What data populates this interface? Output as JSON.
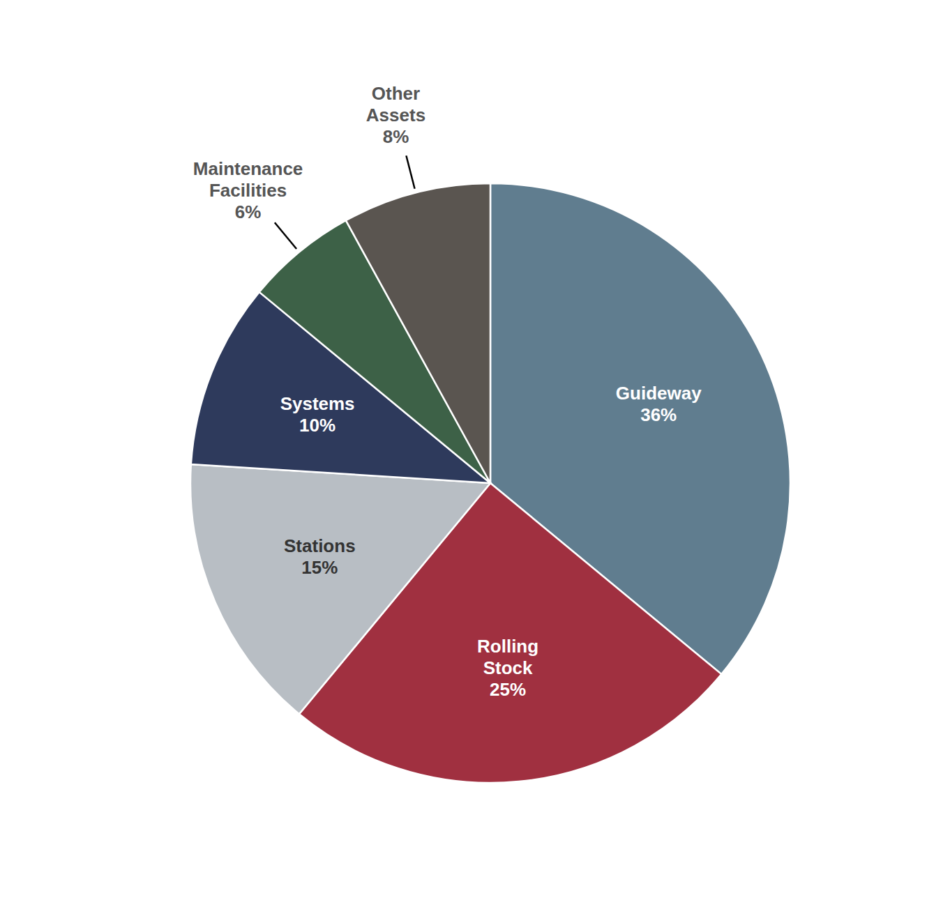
{
  "chart_data": {
    "type": "pie",
    "categories": [
      "Guideway",
      "Rolling\nStock",
      "Stations",
      "Systems",
      "Maintenance\nFacilities",
      "Other\nAssets"
    ],
    "values": [
      36,
      25,
      15,
      10,
      6,
      8
    ],
    "value_labels": [
      "36%",
      "25%",
      "15%",
      "10%",
      "6%",
      "8%"
    ],
    "colors": [
      "#607d8f",
      "#a03040",
      "#b8bec4",
      "#2e3a5c",
      "#3d6147",
      "#5a5550"
    ],
    "data_labels": true
  }
}
